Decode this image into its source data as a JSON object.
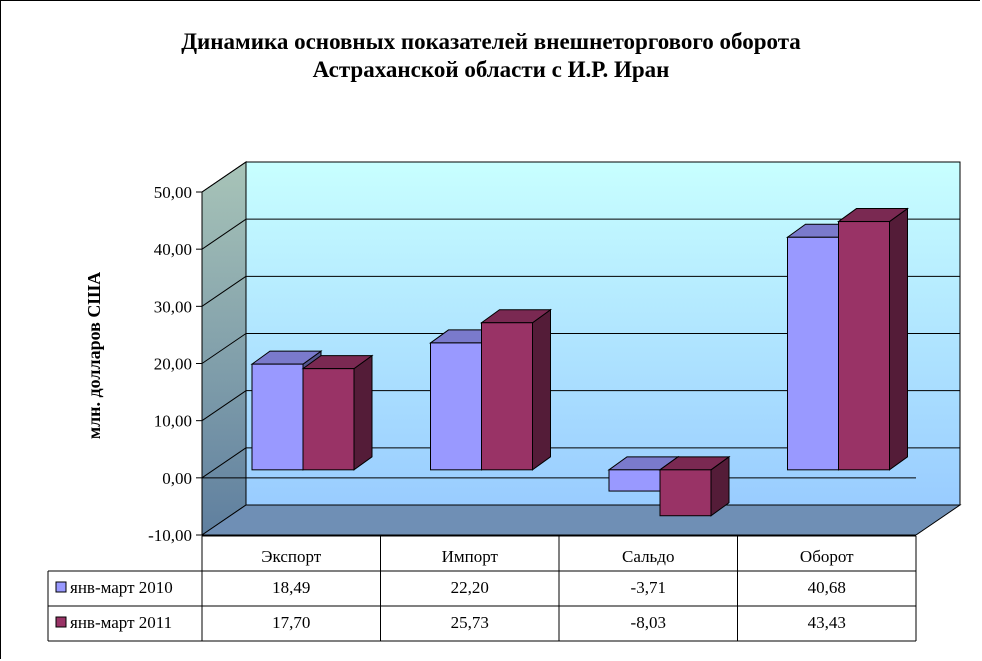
{
  "chart_data": {
    "type": "bar",
    "title": "Динамика основных показателей внешнеторгового оборота",
    "subtitle": "Астраханской области с И.Р. Иран",
    "ylabel": "млн. долларов США",
    "xlabel": "",
    "ylim": [
      -10,
      50
    ],
    "yticks": [
      "50,00",
      "40,00",
      "30,00",
      "20,00",
      "10,00",
      "0,00",
      "-10,00"
    ],
    "categories": [
      "Экспорт",
      "Импорт",
      "Сальдо",
      "Оборот"
    ],
    "series": [
      {
        "name": "янв-март 2010",
        "values": [
          18.49,
          22.2,
          -3.71,
          40.68
        ],
        "labels": [
          "18,49",
          "22,20",
          "-3,71",
          "40,68"
        ],
        "color": "#9999ff"
      },
      {
        "name": "янв-март 2011",
        "values": [
          17.7,
          25.73,
          -8.03,
          43.43
        ],
        "labels": [
          "17,70",
          "25,73",
          "-8,03",
          "43,43"
        ],
        "color": "#993366"
      }
    ],
    "grid": true,
    "legend": "data-table",
    "background_gradient": [
      "#c8ffff",
      "#99ccff"
    ],
    "floor_color": "#6f8fb5"
  }
}
